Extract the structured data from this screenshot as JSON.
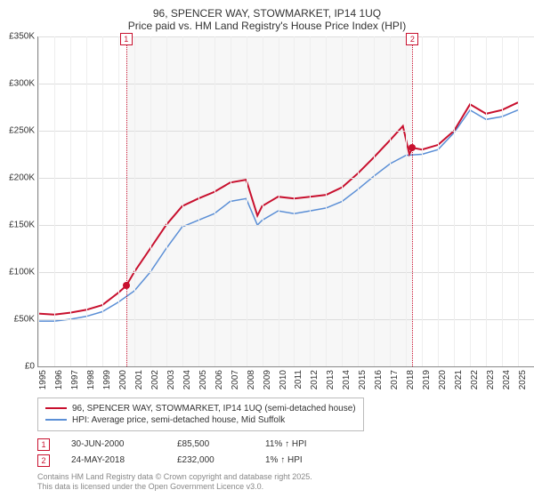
{
  "title_line1": "96, SPENCER WAY, STOWMARKET, IP14 1UQ",
  "title_line2": "Price paid vs. HM Land Registry's House Price Index (HPI)",
  "chart": {
    "type": "line",
    "background_color": "#ffffff",
    "grid_color": "#dddddd",
    "ylim": [
      0,
      350000
    ],
    "ytick_step": 50000,
    "yticks": [
      "£0",
      "£50K",
      "£100K",
      "£150K",
      "£200K",
      "£250K",
      "£300K",
      "£350K"
    ],
    "xlim": [
      1995,
      2026
    ],
    "xticks": [
      1995,
      1996,
      1997,
      1998,
      1999,
      2000,
      2001,
      2002,
      2003,
      2004,
      2005,
      2006,
      2007,
      2008,
      2009,
      2010,
      2011,
      2012,
      2013,
      2014,
      2015,
      2016,
      2017,
      2018,
      2019,
      2020,
      2021,
      2022,
      2023,
      2024,
      2025
    ],
    "shaded_region": {
      "start": 2000.5,
      "end": 2018.4,
      "color": "rgba(200,200,200,0.15)"
    },
    "series": [
      {
        "name": "property",
        "color": "#c8102e",
        "line_width": 2,
        "points": [
          [
            1995,
            56000
          ],
          [
            1996,
            55000
          ],
          [
            1997,
            57000
          ],
          [
            1998,
            60000
          ],
          [
            1999,
            65000
          ],
          [
            2000,
            78000
          ],
          [
            2000.5,
            85500
          ],
          [
            2001,
            100000
          ],
          [
            2002,
            125000
          ],
          [
            2003,
            150000
          ],
          [
            2004,
            170000
          ],
          [
            2005,
            178000
          ],
          [
            2006,
            185000
          ],
          [
            2007,
            195000
          ],
          [
            2008,
            198000
          ],
          [
            2008.7,
            160000
          ],
          [
            2009,
            170000
          ],
          [
            2010,
            180000
          ],
          [
            2011,
            178000
          ],
          [
            2012,
            180000
          ],
          [
            2013,
            182000
          ],
          [
            2014,
            190000
          ],
          [
            2015,
            205000
          ],
          [
            2016,
            222000
          ],
          [
            2017,
            240000
          ],
          [
            2017.8,
            255000
          ],
          [
            2018.2,
            225000
          ],
          [
            2018.4,
            232000
          ],
          [
            2019,
            230000
          ],
          [
            2020,
            235000
          ],
          [
            2021,
            250000
          ],
          [
            2022,
            278000
          ],
          [
            2023,
            268000
          ],
          [
            2024,
            272000
          ],
          [
            2025,
            280000
          ]
        ]
      },
      {
        "name": "hpi",
        "color": "#5b8fd6",
        "line_width": 1.5,
        "points": [
          [
            1995,
            48000
          ],
          [
            1996,
            48000
          ],
          [
            1997,
            50000
          ],
          [
            1998,
            53000
          ],
          [
            1999,
            58000
          ],
          [
            2000,
            68000
          ],
          [
            2001,
            80000
          ],
          [
            2002,
            100000
          ],
          [
            2003,
            125000
          ],
          [
            2004,
            148000
          ],
          [
            2005,
            155000
          ],
          [
            2006,
            162000
          ],
          [
            2007,
            175000
          ],
          [
            2008,
            178000
          ],
          [
            2008.7,
            150000
          ],
          [
            2009,
            155000
          ],
          [
            2010,
            165000
          ],
          [
            2011,
            162000
          ],
          [
            2012,
            165000
          ],
          [
            2013,
            168000
          ],
          [
            2014,
            175000
          ],
          [
            2015,
            188000
          ],
          [
            2016,
            202000
          ],
          [
            2017,
            215000
          ],
          [
            2018,
            224000
          ],
          [
            2019,
            225000
          ],
          [
            2020,
            230000
          ],
          [
            2021,
            248000
          ],
          [
            2022,
            272000
          ],
          [
            2023,
            262000
          ],
          [
            2024,
            265000
          ],
          [
            2025,
            272000
          ]
        ]
      }
    ],
    "markers": [
      {
        "label": "1",
        "x": 2000.5,
        "y": 85500,
        "color": "#c8102e"
      },
      {
        "label": "2",
        "x": 2018.4,
        "y": 232000,
        "color": "#c8102e"
      }
    ]
  },
  "legend": {
    "items": [
      {
        "color": "#c8102e",
        "label": "96, SPENCER WAY, STOWMARKET, IP14 1UQ (semi-detached house)"
      },
      {
        "color": "#5b8fd6",
        "label": "HPI: Average price, semi-detached house, Mid Suffolk"
      }
    ]
  },
  "transactions": [
    {
      "num": "1",
      "date": "30-JUN-2000",
      "price": "£85,500",
      "pct": "11%",
      "arrow": "↑",
      "vs": "HPI"
    },
    {
      "num": "2",
      "date": "24-MAY-2018",
      "price": "£232,000",
      "pct": "1%",
      "arrow": "↑",
      "vs": "HPI"
    }
  ],
  "footer_line1": "Contains HM Land Registry data © Crown copyright and database right 2025.",
  "footer_line2": "This data is licensed under the Open Government Licence v3.0."
}
